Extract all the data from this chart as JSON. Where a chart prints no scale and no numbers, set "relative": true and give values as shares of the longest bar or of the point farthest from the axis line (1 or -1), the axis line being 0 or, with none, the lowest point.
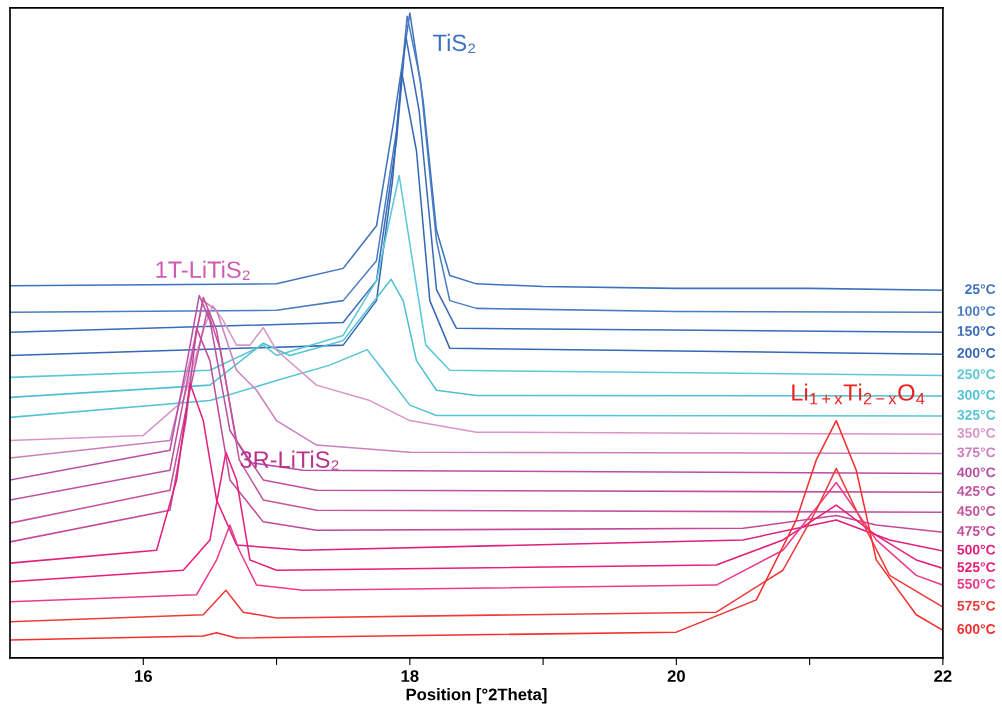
{
  "chart_data": {
    "type": "line",
    "relative": true,
    "xlabel": "Position [°2Theta]",
    "xlim": [
      15,
      22
    ],
    "xticks": [
      16,
      {
        "value": 17,
        "label": null
      },
      18,
      {
        "value": 19,
        "label": null
      },
      20,
      {
        "value": 21,
        "label": null
      },
      22
    ],
    "tick_labels": "x",
    "grid": false,
    "legend": false,
    "marker": "none",
    "line_style": "solid",
    "annotations": [
      "TiS₂",
      "1T-LiTiS₂",
      "3R-LiTiS₂",
      "Li$_{1+x}$Ti$_{2−x}$O$_{4}$"
    ],
    "series": [
      {
        "name": "25°C",
        "color": "#3f72bd",
        "x": [
          15,
          17.0,
          17.5,
          17.75,
          17.88,
          18.0,
          18.1,
          18.2,
          18.3,
          18.5,
          19,
          20,
          21,
          22
        ],
        "values": [
          0.577,
          0.58,
          0.604,
          0.67,
          0.833,
          1.0,
          0.864,
          0.663,
          0.593,
          0.58,
          0.576,
          0.573,
          0.573,
          0.57
        ]
      },
      {
        "name": "100°C",
        "color": "#4a7cc4",
        "x": [
          15,
          17.0,
          17.5,
          17.75,
          17.9,
          17.98,
          18.08,
          18.2,
          18.3,
          18.5,
          20,
          22
        ],
        "values": [
          0.536,
          0.539,
          0.554,
          0.616,
          0.817,
          0.995,
          0.895,
          0.647,
          0.554,
          0.542,
          0.537,
          0.536
        ]
      },
      {
        "name": "150°C",
        "color": "#3a6cb8",
        "x": [
          15,
          17.5,
          17.75,
          17.9,
          17.97,
          18.07,
          18.2,
          18.35,
          22
        ],
        "values": [
          0.505,
          0.52,
          0.585,
          0.802,
          0.964,
          0.848,
          0.571,
          0.511,
          0.505
        ]
      },
      {
        "name": "200°C",
        "color": "#3567b5",
        "x": [
          15,
          17.5,
          17.75,
          17.87,
          17.94,
          18.05,
          18.15,
          18.3,
          22
        ],
        "values": [
          0.469,
          0.485,
          0.554,
          0.74,
          0.907,
          0.786,
          0.554,
          0.48,
          0.471
        ]
      },
      {
        "name": "250°C",
        "color": "#5cc7d6",
        "x": [
          15,
          16.5,
          16.9,
          17.0,
          17.5,
          17.75,
          17.92,
          18.02,
          18.12,
          18.3,
          22
        ],
        "values": [
          0.435,
          0.446,
          0.485,
          0.469,
          0.5,
          0.585,
          0.748,
          0.616,
          0.485,
          0.446,
          0.438
        ]
      },
      {
        "name": "300°C",
        "color": "#4fc0d2",
        "x": [
          15,
          16.5,
          16.9,
          17.1,
          17.5,
          17.86,
          17.95,
          18.05,
          18.2,
          18.5,
          22
        ],
        "values": [
          0.404,
          0.423,
          0.488,
          0.469,
          0.492,
          0.587,
          0.554,
          0.461,
          0.415,
          0.407,
          0.406
        ]
      },
      {
        "name": "325°C",
        "color": "#56c4d4",
        "x": [
          15,
          16.5,
          17.0,
          17.4,
          17.68,
          17.8,
          18.0,
          18.2,
          22
        ],
        "values": [
          0.373,
          0.399,
          0.43,
          0.454,
          0.478,
          0.446,
          0.392,
          0.376,
          0.375
        ]
      },
      {
        "name": "350°C",
        "color": "#d995c8",
        "x": [
          15,
          16.0,
          16.3,
          16.45,
          16.52,
          16.6,
          16.7,
          16.8,
          16.9,
          17.0,
          17.3,
          17.7,
          18.0,
          18.5,
          22
        ],
        "values": [
          0.337,
          0.345,
          0.399,
          0.508,
          0.546,
          0.523,
          0.485,
          0.485,
          0.512,
          0.477,
          0.423,
          0.399,
          0.368,
          0.35,
          0.347
        ]
      },
      {
        "name": "375°C",
        "color": "#cc7fbd",
        "x": [
          15,
          16.2,
          16.35,
          16.45,
          16.55,
          16.7,
          16.85,
          17.0,
          17.3,
          18,
          22
        ],
        "values": [
          0.31,
          0.337,
          0.461,
          0.554,
          0.539,
          0.446,
          0.415,
          0.368,
          0.33,
          0.319,
          0.317
        ]
      },
      {
        "name": "400°C",
        "color": "#b94fa6",
        "x": [
          15,
          16.2,
          16.33,
          16.42,
          16.5,
          16.65,
          16.8,
          17.2,
          22
        ],
        "values": [
          0.276,
          0.322,
          0.461,
          0.562,
          0.523,
          0.353,
          0.303,
          0.291,
          0.286
        ]
      },
      {
        "name": "425°C",
        "color": "#c0509f",
        "x": [
          15,
          16.2,
          16.33,
          16.45,
          16.55,
          16.7,
          16.9,
          17.3,
          22
        ],
        "values": [
          0.245,
          0.291,
          0.43,
          0.559,
          0.508,
          0.337,
          0.276,
          0.26,
          0.257
        ]
      },
      {
        "name": "450°C",
        "color": "#c4549e",
        "x": [
          15,
          16.2,
          16.35,
          16.48,
          16.58,
          16.72,
          16.9,
          17.3,
          22
        ],
        "values": [
          0.209,
          0.26,
          0.415,
          0.539,
          0.477,
          0.307,
          0.245,
          0.229,
          0.226
        ]
      },
      {
        "name": "475°C",
        "color": "#c24a9a",
        "x": [
          15,
          16.2,
          16.32,
          16.4,
          16.5,
          16.65,
          16.9,
          17.3,
          20.5,
          21.2,
          21.5,
          22
        ],
        "values": [
          0.18,
          0.229,
          0.368,
          0.511,
          0.461,
          0.276,
          0.211,
          0.198,
          0.201,
          0.221,
          0.206,
          0.195
        ]
      },
      {
        "name": "500°C",
        "color": "#e0207e",
        "x": [
          15,
          16.1,
          16.25,
          16.35,
          16.45,
          16.55,
          16.7,
          17.2,
          20.5,
          21.2,
          21.6,
          22
        ],
        "values": [
          0.147,
          0.167,
          0.276,
          0.426,
          0.368,
          0.245,
          0.175,
          0.167,
          0.183,
          0.214,
          0.183,
          0.166
        ]
      },
      {
        "name": "525°C",
        "color": "#e81e7a",
        "x": [
          15,
          16.3,
          16.5,
          16.62,
          16.7,
          16.8,
          17.0,
          20.3,
          20.8,
          21.2,
          21.5,
          21.8,
          22
        ],
        "values": [
          0.118,
          0.136,
          0.183,
          0.319,
          0.276,
          0.152,
          0.136,
          0.144,
          0.183,
          0.237,
          0.19,
          0.152,
          0.139
        ]
      },
      {
        "name": "550°C",
        "color": "#ee3a8c",
        "x": [
          15,
          16.4,
          16.55,
          16.65,
          16.72,
          16.85,
          17.2,
          20.3,
          20.8,
          21.2,
          21.5,
          21.8,
          22
        ],
        "values": [
          0.087,
          0.098,
          0.152,
          0.206,
          0.167,
          0.113,
          0.105,
          0.113,
          0.167,
          0.272,
          0.183,
          0.128,
          0.113
        ]
      },
      {
        "name": "575°C",
        "color": "#f03a3a",
        "x": [
          15,
          16.45,
          16.62,
          16.75,
          17.0,
          20.3,
          20.8,
          21.05,
          21.2,
          21.35,
          21.6,
          22
        ],
        "values": [
          0.056,
          0.067,
          0.105,
          0.071,
          0.062,
          0.071,
          0.136,
          0.229,
          0.294,
          0.229,
          0.128,
          0.079
        ]
      },
      {
        "name": "600°C",
        "color": "#f23030",
        "x": [
          15,
          16.45,
          16.55,
          16.7,
          20.0,
          20.6,
          20.9,
          21.05,
          21.2,
          21.35,
          21.5,
          21.8,
          22
        ],
        "values": [
          0.028,
          0.034,
          0.039,
          0.031,
          0.04,
          0.09,
          0.214,
          0.307,
          0.368,
          0.291,
          0.152,
          0.067,
          0.043
        ]
      }
    ]
  }
}
